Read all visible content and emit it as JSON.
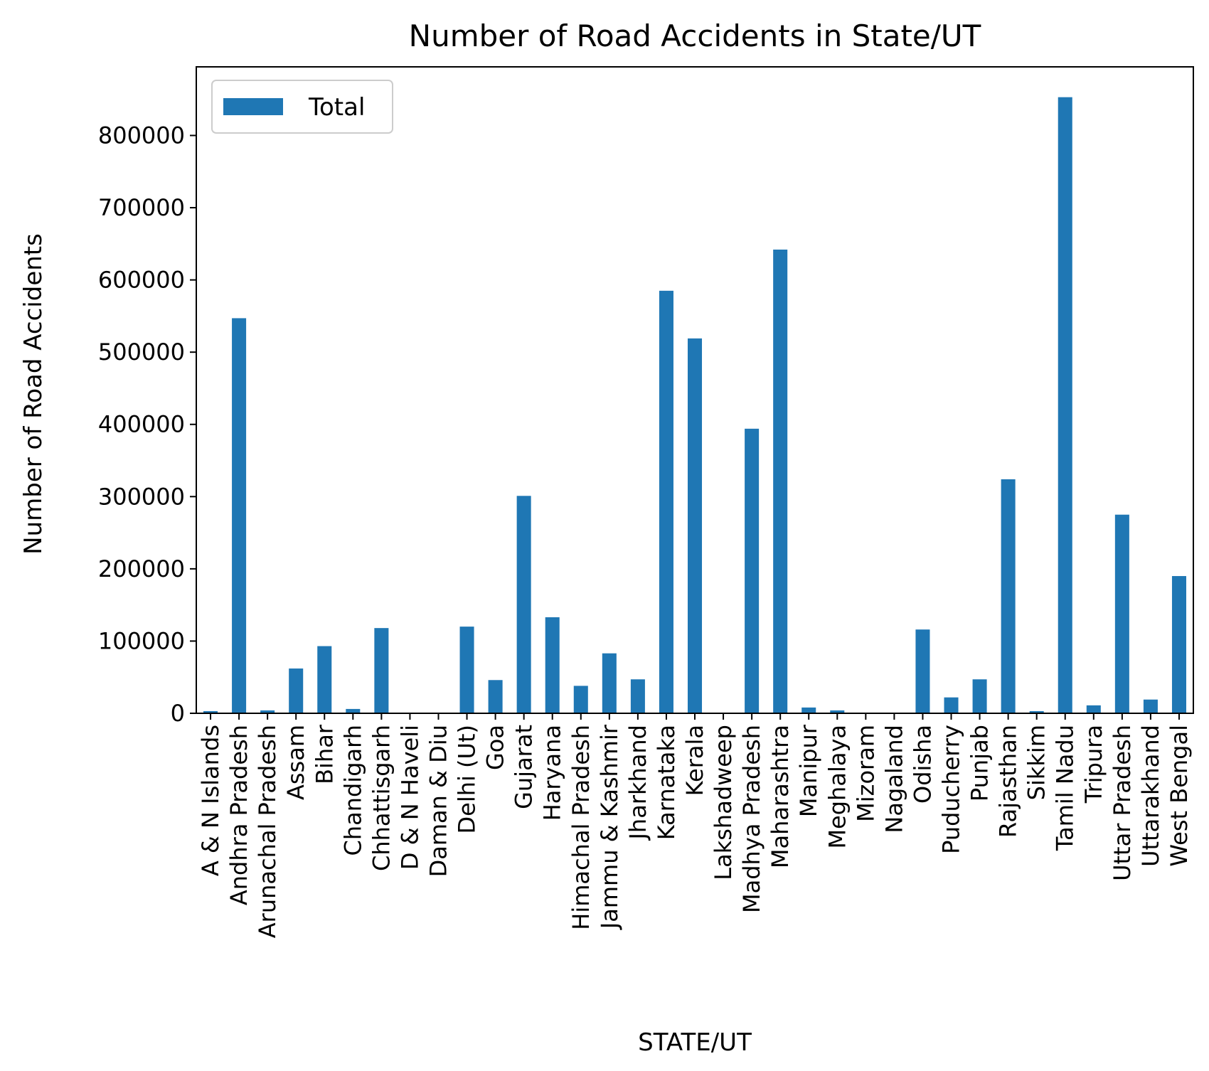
{
  "chart_data": {
    "type": "bar",
    "title": "Number of Road Accidents in State/UT",
    "xlabel": "STATE/UT",
    "ylabel": "Number of Road Accidents",
    "ylim": [
      0,
      895000
    ],
    "yticks": [
      0,
      100000,
      200000,
      300000,
      400000,
      500000,
      600000,
      700000,
      800000
    ],
    "ytick_labels": [
      "0",
      "100000",
      "200000",
      "300000",
      "400000",
      "500000",
      "600000",
      "700000",
      "800000"
    ],
    "grid": false,
    "legend": {
      "position": "top-left",
      "entries": [
        "Total"
      ]
    },
    "colors": {
      "bar": "#1f77b4",
      "axis": "#000000",
      "legend_border": "#cccccc"
    },
    "categories": [
      "A & N Islands",
      "Andhra Pradesh",
      "Arunachal Pradesh",
      "Assam",
      "Bihar",
      "Chandigarh",
      "Chhattisgarh",
      "D & N Haveli",
      "Daman & Diu",
      "Delhi (Ut)",
      "Goa",
      "Gujarat",
      "Haryana",
      "Himachal Pradesh",
      "Jammu & Kashmir",
      "Jharkhand",
      "Karnataka",
      "Kerala",
      "Lakshadweep",
      "Madhya Pradesh",
      "Maharashtra",
      "Manipur",
      "Meghalaya",
      "Mizoram",
      "Nagaland",
      "Odisha",
      "Puducherry",
      "Punjab",
      "Rajasthan",
      "Sikkim",
      "Tamil Nadu",
      "Tripura",
      "Uttar Pradesh",
      "Uttarakhand",
      "West Bengal"
    ],
    "series": [
      {
        "name": "Total",
        "values": [
          3000,
          547000,
          4000,
          62000,
          93000,
          6000,
          118000,
          500,
          500,
          120000,
          46000,
          301000,
          133000,
          38000,
          83000,
          47000,
          585000,
          519000,
          100,
          394000,
          642000,
          8000,
          4000,
          500,
          500,
          116000,
          22000,
          47000,
          324000,
          3000,
          853000,
          11000,
          275000,
          19000,
          190000
        ]
      }
    ]
  }
}
